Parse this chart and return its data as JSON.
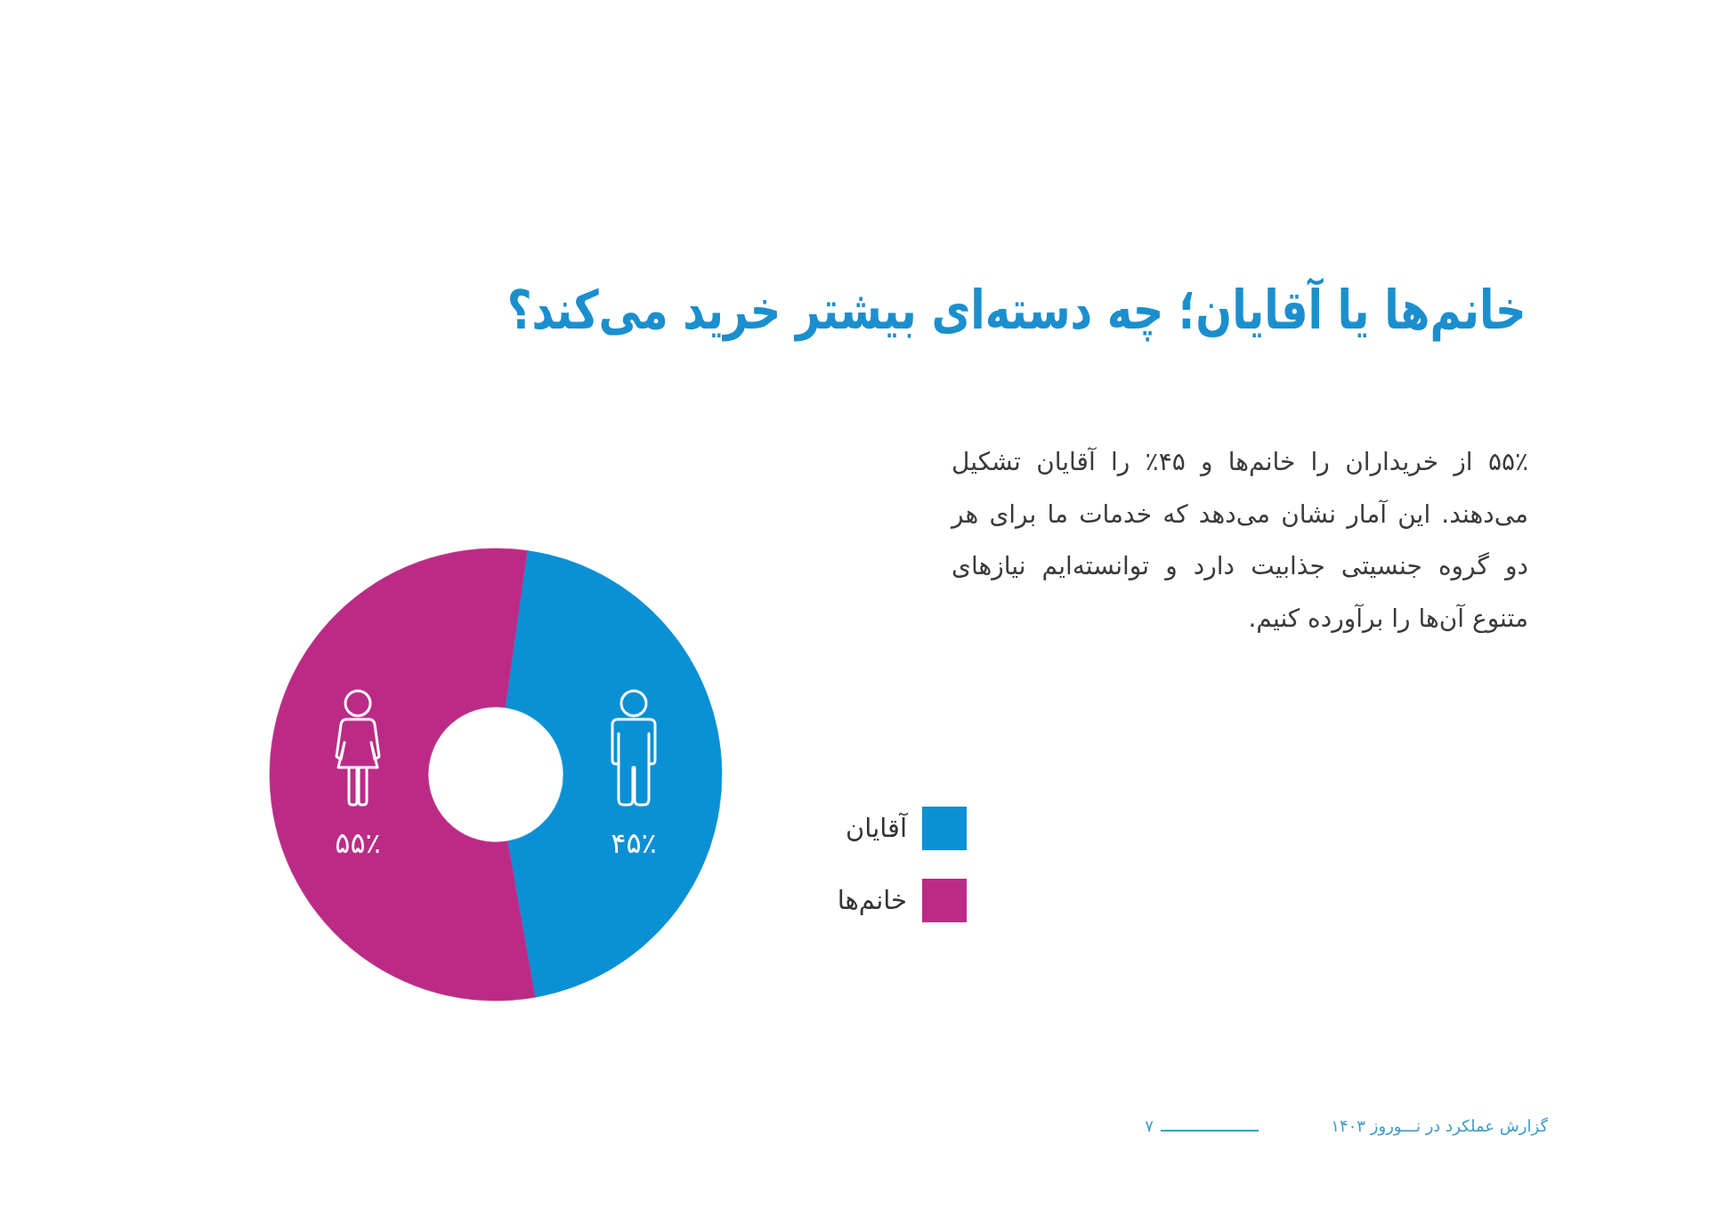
{
  "chart_data": {
    "type": "donut",
    "title": "خانم‌ها یا آقایان؛ چه دسته‌ای بیشتر خرید می‌کند؟",
    "categories": [
      "آقایان",
      "خانم‌ها"
    ],
    "values": [
      45,
      55
    ],
    "colors": [
      "#0a90d5",
      "#bb2b86"
    ],
    "value_labels": [
      "۴۵٪",
      "۵۵٪"
    ],
    "legend": "right",
    "annotations": [
      "۵۵٪ از خریداران را خانم‌ها و ۴۵٪ را آقایان تشکیل می‌دهند. این آمار نشان می‌دهد که خدمات ما برای هر دو گروه جنسیتی جذابیت دارد و توانسته‌ایم نیازهای متنوع آن‌ها را برآورده کنیم.",
      "گزارش عملکرد در نـــوروز ۱۴۰۳",
      "۷"
    ]
  }
}
